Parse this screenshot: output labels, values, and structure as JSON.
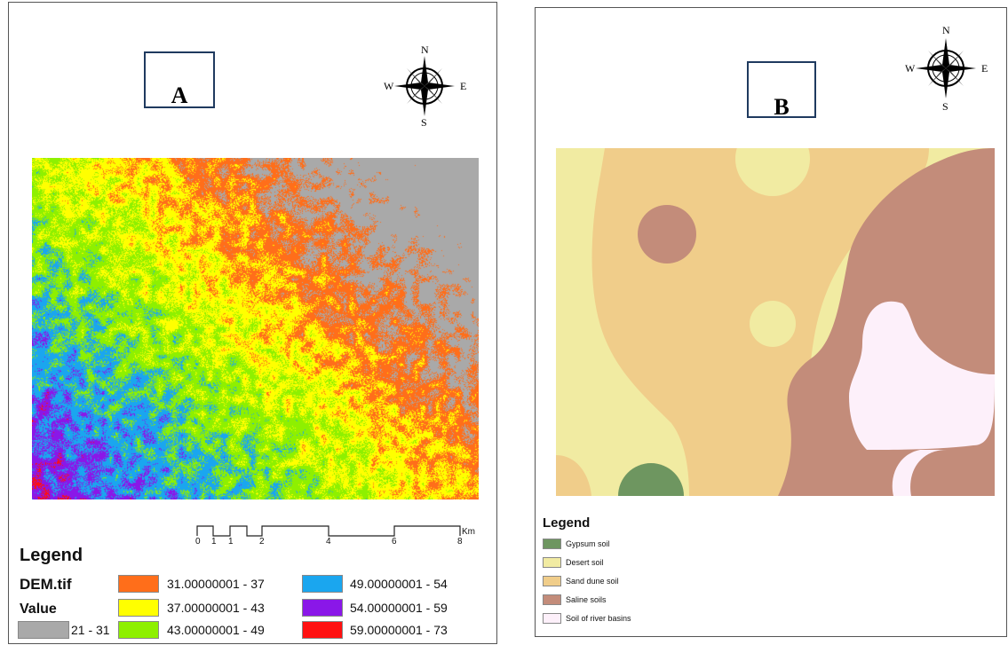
{
  "panel_a": {
    "label": "A",
    "compass": {
      "n": "N",
      "s": "S",
      "e": "E",
      "w": "W"
    },
    "scale": {
      "ticks": [
        "0",
        "1",
        "1",
        "2",
        "4",
        "6",
        "8"
      ],
      "unit": "Km"
    },
    "legend": {
      "title": "Legend",
      "layer": "DEM.tif",
      "field": "Value",
      "classes": [
        {
          "label": "21 - 31",
          "color": "#a9a9a9"
        },
        {
          "label": "31.00000001 - 37",
          "color": "#ff6e1a"
        },
        {
          "label": "37.00000001 - 43",
          "color": "#ffff00"
        },
        {
          "label": "43.00000001 - 49",
          "color": "#8ef000"
        },
        {
          "label": "49.00000001 - 54",
          "color": "#1aa6ef"
        },
        {
          "label": "54.00000001 - 59",
          "color": "#8a17e8"
        },
        {
          "label": "59.00000001 - 73",
          "color": "#ff1010"
        }
      ]
    }
  },
  "panel_b": {
    "label": "B",
    "compass": {
      "n": "N",
      "s": "S",
      "e": "E",
      "w": "W"
    },
    "legend": {
      "title": "Legend",
      "classes": [
        {
          "label": "Gypsum soil",
          "color": "#6e9660"
        },
        {
          "label": "Desert soil",
          "color": "#f1eba2"
        },
        {
          "label": "Sand dune soil",
          "color": "#f0cd8a"
        },
        {
          "label": "Saline soils",
          "color": "#c38c7a"
        },
        {
          "label": "Soil of river basins",
          "color": "#fdf0fa"
        }
      ]
    }
  }
}
